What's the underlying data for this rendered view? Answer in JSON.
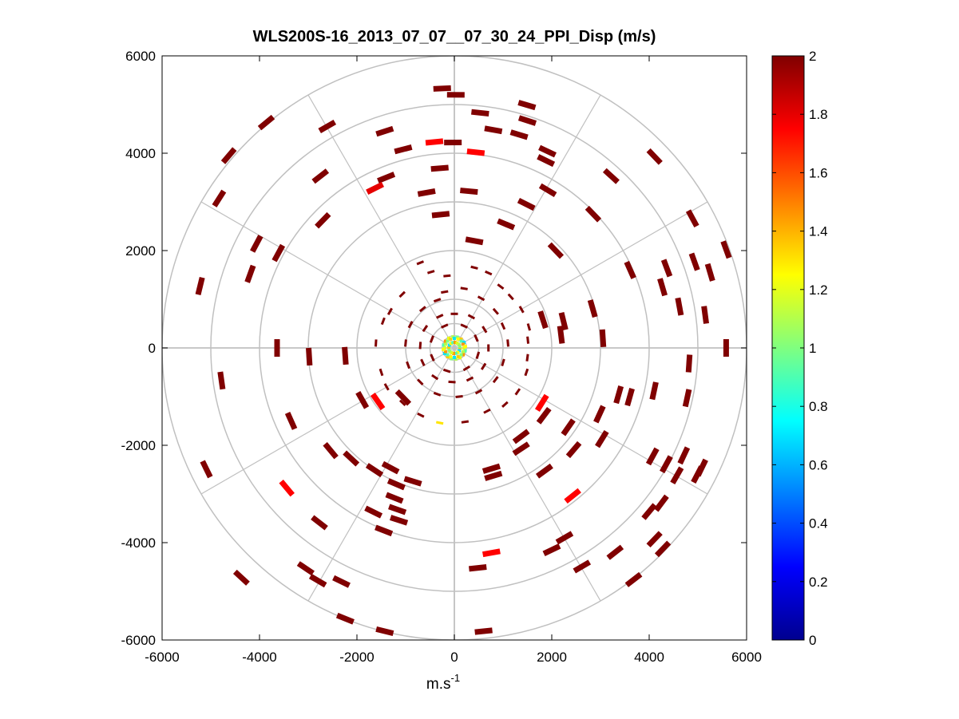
{
  "chart_data": {
    "type": "ppi-polar",
    "title": "WLS200S-16_2013_07_07__07_30_24_PPI_Disp (m/s)",
    "xlabel": "m.s",
    "xlabel_superscript": "-1",
    "ylabel": "",
    "xlim": [
      -6000,
      6000
    ],
    "ylim": [
      -6000,
      6000
    ],
    "x_ticks": [
      -6000,
      -4000,
      -2000,
      0,
      2000,
      4000,
      6000
    ],
    "y_ticks": [
      6000,
      4000,
      2000,
      0,
      -2000,
      -4000,
      -6000
    ],
    "x_tick_labels": [
      "-6000",
      "-4000",
      "-2000",
      "0",
      "2000",
      "4000",
      "6000"
    ],
    "y_tick_labels": [
      "6000",
      "4000",
      "2000",
      "0",
      "-2000",
      "-4000",
      "-6000"
    ],
    "range_rings_m": [
      1000,
      2000,
      3000,
      4000,
      5000,
      6000
    ],
    "inner_rings_m": [
      250,
      500
    ],
    "spoke_step_deg": 30,
    "colorbar": {
      "min": 0,
      "max": 2,
      "ticks": [
        2,
        1.8,
        1.6,
        1.4,
        1.2,
        1,
        0.8,
        0.6,
        0.4,
        0.2,
        0
      ],
      "tick_labels": [
        "2",
        "1.8",
        "1.6",
        "1.4",
        "1.2",
        "1",
        "0.8",
        "0.6",
        "0.4",
        "0.2",
        "0"
      ],
      "colormap": "jet"
    },
    "points": [
      {
        "x": -250,
        "y": 5330,
        "v": 2
      },
      {
        "x": 530,
        "y": 4830,
        "v": 2
      },
      {
        "x": 800,
        "y": 4480,
        "v": 2
      },
      {
        "x": 1490,
        "y": 4990,
        "v": 2
      },
      {
        "x": 1500,
        "y": 4670,
        "v": 2
      },
      {
        "x": 1330,
        "y": 4380,
        "v": 2
      },
      {
        "x": 1910,
        "y": 4040,
        "v": 2
      },
      {
        "x": 1880,
        "y": 3850,
        "v": 2
      },
      {
        "x": 1920,
        "y": 3240,
        "v": 2
      },
      {
        "x": 1480,
        "y": 2950,
        "v": 2
      },
      {
        "x": 1060,
        "y": 2540,
        "v": 2
      },
      {
        "x": 440,
        "y": 4020,
        "v": 1.75
      },
      {
        "x": -410,
        "y": 4230,
        "v": 1.75
      },
      {
        "x": -1050,
        "y": 4080,
        "v": 2
      },
      {
        "x": -1430,
        "y": 4450,
        "v": 2
      },
      {
        "x": -2610,
        "y": 4550,
        "v": 2
      },
      {
        "x": -2750,
        "y": 3530,
        "v": 2
      },
      {
        "x": -1400,
        "y": 3500,
        "v": 2
      },
      {
        "x": -1630,
        "y": 3280,
        "v": 1.8
      },
      {
        "x": -570,
        "y": 3190,
        "v": 2
      },
      {
        "x": -280,
        "y": 2740,
        "v": 2
      },
      {
        "x": -2700,
        "y": 2620,
        "v": 2
      },
      {
        "x": -4830,
        "y": 3070,
        "v": 2
      },
      {
        "x": -4060,
        "y": 2140,
        "v": 2
      },
      {
        "x": -3610,
        "y": 1950,
        "v": 2
      },
      {
        "x": -4190,
        "y": 1520,
        "v": 2
      },
      {
        "x": 4110,
        "y": 3930,
        "v": 2
      },
      {
        "x": 2850,
        "y": 2750,
        "v": 2
      },
      {
        "x": 2080,
        "y": 2000,
        "v": 2
      },
      {
        "x": 3610,
        "y": 1600,
        "v": 2
      },
      {
        "x": 4360,
        "y": 1640,
        "v": 2
      },
      {
        "x": 4930,
        "y": 1770,
        "v": 2
      },
      {
        "x": 5250,
        "y": 1550,
        "v": 2
      },
      {
        "x": 5580,
        "y": 2020,
        "v": 2
      },
      {
        "x": 4270,
        "y": 1250,
        "v": 2
      },
      {
        "x": 4620,
        "y": 850,
        "v": 2
      },
      {
        "x": 5150,
        "y": 680,
        "v": 2
      },
      {
        "x": 2840,
        "y": 810,
        "v": 2
      },
      {
        "x": 1820,
        "y": 580,
        "v": 2
      },
      {
        "x": 2240,
        "y": 550,
        "v": 2
      },
      {
        "x": 2190,
        "y": 270,
        "v": 2
      },
      {
        "x": 3050,
        "y": 200,
        "v": 2
      },
      {
        "x": 5580,
        "y": 0,
        "v": 2
      },
      {
        "x": 4820,
        "y": -320,
        "v": 2
      },
      {
        "x": 4100,
        "y": -880,
        "v": 2
      },
      {
        "x": 3600,
        "y": -1010,
        "v": 2
      },
      {
        "x": 3370,
        "y": -960,
        "v": 2
      },
      {
        "x": 2980,
        "y": -1360,
        "v": 2
      },
      {
        "x": 2340,
        "y": -1630,
        "v": 2
      },
      {
        "x": 2450,
        "y": -2090,
        "v": 2
      },
      {
        "x": 1840,
        "y": -1390,
        "v": 2
      },
      {
        "x": 1800,
        "y": -1130,
        "v": 1.75
      },
      {
        "x": 1850,
        "y": -2530,
        "v": 2
      },
      {
        "x": 2430,
        "y": -3040,
        "v": 1.75
      },
      {
        "x": 4070,
        "y": -2230,
        "v": 2
      },
      {
        "x": 4350,
        "y": -2390,
        "v": 2
      },
      {
        "x": 4570,
        "y": -2620,
        "v": 2
      },
      {
        "x": 4710,
        "y": -2210,
        "v": 2
      },
      {
        "x": 4990,
        "y": -2600,
        "v": 2
      },
      {
        "x": 5080,
        "y": -2460,
        "v": 2
      },
      {
        "x": 4250,
        "y": -3190,
        "v": 2
      },
      {
        "x": 4000,
        "y": -3360,
        "v": 2
      },
      {
        "x": 4110,
        "y": -3930,
        "v": 2
      },
      {
        "x": 4280,
        "y": -4130,
        "v": 2
      },
      {
        "x": 3300,
        "y": -4200,
        "v": 2
      },
      {
        "x": 2620,
        "y": -4490,
        "v": 2
      },
      {
        "x": 2260,
        "y": -3900,
        "v": 2
      },
      {
        "x": 2000,
        "y": -4150,
        "v": 2
      },
      {
        "x": 800,
        "y": -2630,
        "v": 2
      },
      {
        "x": 760,
        "y": -2480,
        "v": 2
      },
      {
        "x": 1370,
        "y": -1820,
        "v": 2
      },
      {
        "x": 1370,
        "y": -2070,
        "v": 2
      },
      {
        "x": 760,
        "y": -4210,
        "v": 1.75
      },
      {
        "x": 480,
        "y": -4520,
        "v": 2
      },
      {
        "x": 600,
        "y": -5820,
        "v": 2
      },
      {
        "x": -1430,
        "y": -5820,
        "v": 2
      },
      {
        "x": -2240,
        "y": -5560,
        "v": 2
      },
      {
        "x": -2320,
        "y": -4800,
        "v": 2
      },
      {
        "x": -2800,
        "y": -4780,
        "v": 2
      },
      {
        "x": -3050,
        "y": -4530,
        "v": 2
      },
      {
        "x": -2770,
        "y": -3590,
        "v": 2
      },
      {
        "x": -1450,
        "y": -3750,
        "v": 2
      },
      {
        "x": -1140,
        "y": -3540,
        "v": 2
      },
      {
        "x": -1660,
        "y": -3370,
        "v": 2
      },
      {
        "x": -1170,
        "y": -3320,
        "v": 2
      },
      {
        "x": -1230,
        "y": -3080,
        "v": 2
      },
      {
        "x": -1190,
        "y": -2800,
        "v": 2
      },
      {
        "x": -850,
        "y": -2740,
        "v": 2
      },
      {
        "x": -1310,
        "y": -2460,
        "v": 2
      },
      {
        "x": -1640,
        "y": -2510,
        "v": 2
      },
      {
        "x": -2120,
        "y": -2270,
        "v": 2
      },
      {
        "x": -2540,
        "y": -2110,
        "v": 2
      },
      {
        "x": -3440,
        "y": -2880,
        "v": 1.75
      },
      {
        "x": -3350,
        "y": -1500,
        "v": 2
      },
      {
        "x": -4780,
        "y": -670,
        "v": 2
      },
      {
        "x": -2980,
        "y": -180,
        "v": 2
      },
      {
        "x": -3640,
        "y": 0,
        "v": 2
      },
      {
        "x": -2240,
        "y": -160,
        "v": 2
      },
      {
        "x": -1570,
        "y": -1100,
        "v": 1.75
      },
      {
        "x": -1890,
        "y": -1070,
        "v": 2
      },
      {
        "x": -1050,
        "y": -1020,
        "v": 2
      },
      {
        "x": -300,
        "y": 3690,
        "v": 2
      },
      {
        "x": -30,
        "y": 4220,
        "v": 2
      },
      {
        "x": 30,
        "y": 5200,
        "v": 2
      },
      {
        "x": 300,
        "y": 3220,
        "v": 2
      },
      {
        "x": 410,
        "y": 2200,
        "v": 2
      },
      {
        "x": 3030,
        "y": -1870,
        "v": 2
      },
      {
        "x": -3860,
        "y": 4630,
        "v": 2
      },
      {
        "x": -4630,
        "y": 3950,
        "v": 2
      },
      {
        "x": 3220,
        "y": 3530,
        "v": 2
      },
      {
        "x": 4890,
        "y": 2660,
        "v": 2
      },
      {
        "x": 4780,
        "y": -1030,
        "v": 2
      },
      {
        "x": 3680,
        "y": -4760,
        "v": 2
      },
      {
        "x": -4370,
        "y": -4720,
        "v": 2
      },
      {
        "x": -5090,
        "y": -2490,
        "v": 2
      },
      {
        "x": -5220,
        "y": 1270,
        "v": 2
      }
    ],
    "near_points": [
      {
        "x": -700,
        "y": 1750,
        "v": 2
      },
      {
        "x": -480,
        "y": 1560,
        "v": 2
      },
      {
        "x": -150,
        "y": 1480,
        "v": 2
      },
      {
        "x": 410,
        "y": 1650,
        "v": 2
      },
      {
        "x": 700,
        "y": 1540,
        "v": 2
      },
      {
        "x": 950,
        "y": 1260,
        "v": 2
      },
      {
        "x": 1160,
        "y": 1050,
        "v": 2
      },
      {
        "x": 1380,
        "y": 790,
        "v": 2
      },
      {
        "x": 1530,
        "y": 430,
        "v": 2
      },
      {
        "x": 1510,
        "y": 160,
        "v": 2
      },
      {
        "x": 1500,
        "y": -200,
        "v": 2
      },
      {
        "x": 1480,
        "y": -500,
        "v": 2
      },
      {
        "x": 1300,
        "y": -900,
        "v": 2
      },
      {
        "x": 1040,
        "y": -1160,
        "v": 2
      },
      {
        "x": 670,
        "y": -1300,
        "v": 2
      },
      {
        "x": 220,
        "y": -1520,
        "v": 2
      },
      {
        "x": -300,
        "y": -1540,
        "v": 1.3
      },
      {
        "x": -690,
        "y": -1380,
        "v": 2
      },
      {
        "x": -1060,
        "y": -1130,
        "v": 2
      },
      {
        "x": -1390,
        "y": -800,
        "v": 2
      },
      {
        "x": -1500,
        "y": -500,
        "v": 2
      },
      {
        "x": -1610,
        "y": 100,
        "v": 2
      },
      {
        "x": -1460,
        "y": 550,
        "v": 2
      },
      {
        "x": -1320,
        "y": 750,
        "v": 2
      },
      {
        "x": -1070,
        "y": 1100,
        "v": 2
      },
      {
        "x": -200,
        "y": 1150,
        "v": 2
      },
      {
        "x": 200,
        "y": 1220,
        "v": 2
      },
      {
        "x": 550,
        "y": 1020,
        "v": 2
      },
      {
        "x": 850,
        "y": 750,
        "v": 2
      },
      {
        "x": 1000,
        "y": 450,
        "v": 2
      },
      {
        "x": 1100,
        "y": 100,
        "v": 2
      },
      {
        "x": 1000,
        "y": -300,
        "v": 2
      },
      {
        "x": 850,
        "y": -650,
        "v": 2
      },
      {
        "x": 500,
        "y": -900,
        "v": 2
      },
      {
        "x": 100,
        "y": -1000,
        "v": 2
      },
      {
        "x": -350,
        "y": -950,
        "v": 2
      },
      {
        "x": -700,
        "y": -700,
        "v": 2
      },
      {
        "x": -950,
        "y": -350,
        "v": 2
      },
      {
        "x": -1000,
        "y": 100,
        "v": 2
      },
      {
        "x": -900,
        "y": 480,
        "v": 2
      },
      {
        "x": -650,
        "y": 800,
        "v": 2
      },
      {
        "x": -350,
        "y": 980,
        "v": 2
      },
      {
        "x": 0,
        "y": 700,
        "v": 2
      },
      {
        "x": 350,
        "y": 640,
        "v": 2
      },
      {
        "x": 620,
        "y": 380,
        "v": 2
      },
      {
        "x": 700,
        "y": 0,
        "v": 2
      },
      {
        "x": 600,
        "y": -380,
        "v": 2
      },
      {
        "x": 320,
        "y": -640,
        "v": 2
      },
      {
        "x": -50,
        "y": -700,
        "v": 2
      },
      {
        "x": -400,
        "y": -600,
        "v": 2
      },
      {
        "x": -650,
        "y": -300,
        "v": 2
      },
      {
        "x": -700,
        "y": 50,
        "v": 2
      },
      {
        "x": -600,
        "y": 400,
        "v": 2
      },
      {
        "x": -300,
        "y": 650,
        "v": 2
      },
      {
        "x": 200,
        "y": 450,
        "v": 2
      },
      {
        "x": 450,
        "y": 200,
        "v": 2
      },
      {
        "x": 480,
        "y": -150,
        "v": 2
      },
      {
        "x": 250,
        "y": -420,
        "v": 2
      },
      {
        "x": -150,
        "y": -470,
        "v": 2
      },
      {
        "x": -450,
        "y": -200,
        "v": 2
      },
      {
        "x": -460,
        "y": 180,
        "v": 2
      },
      {
        "x": -200,
        "y": 450,
        "v": 2
      }
    ],
    "center_cluster_v": [
      1.2,
      1.35,
      0.9,
      1.1,
      0.7,
      1.45,
      1.0,
      1.25
    ]
  }
}
